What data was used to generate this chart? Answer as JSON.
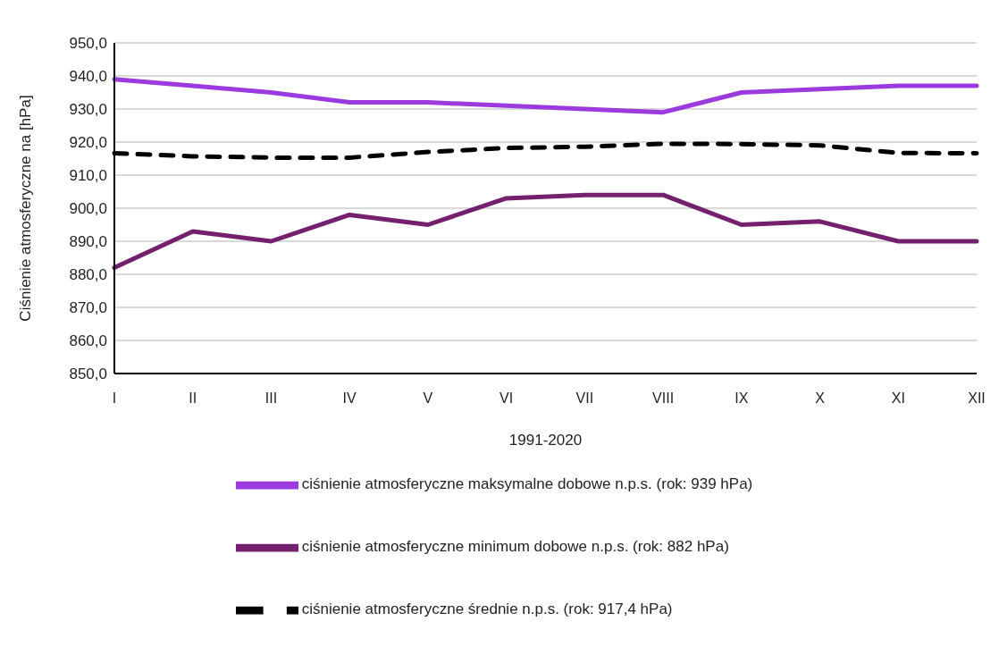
{
  "chart_data": {
    "type": "line",
    "xlabel": "1991-2020",
    "ylabel": "Ciśnienie atmosferyczne na [hPa]",
    "categories": [
      "I",
      "II",
      "III",
      "IV",
      "V",
      "VI",
      "VII",
      "VIII",
      "IX",
      "X",
      "XI",
      "XII"
    ],
    "series": [
      {
        "name": "ciśnienie atmosferyczne średnie n.p.s. (rok: 917,4 hPa)",
        "color": "#000000",
        "line_style": "dashed",
        "values": [
          916.6,
          915.7,
          915.3,
          915.3,
          917.0,
          918.2,
          918.6,
          919.5,
          919.4,
          919.0,
          916.7,
          916.6
        ]
      },
      {
        "name": "ciśnienie atmosferyczne maksymalne dobowe n.p.s. (rok: 939 hPa)",
        "color": "#9b3ade",
        "line_style": "solid",
        "values": [
          939,
          937,
          935,
          932,
          932,
          931,
          930,
          929,
          935,
          936,
          937,
          937
        ]
      },
      {
        "name": "ciśnienie atmosferyczne minimum dobowe n.p.s. (rok: 882 hPa)",
        "color": "#74206e",
        "line_style": "solid",
        "values": [
          882,
          893,
          890,
          898,
          895,
          903,
          904,
          904,
          895,
          896,
          890,
          890
        ]
      }
    ],
    "ylim": [
      850,
      950
    ],
    "yticks": [
      {
        "value": 850,
        "label": "850,0"
      },
      {
        "value": 860,
        "label": "860,0"
      },
      {
        "value": 870,
        "label": "870,0"
      },
      {
        "value": 880,
        "label": "880,0"
      },
      {
        "value": 890,
        "label": "890,0"
      },
      {
        "value": 900,
        "label": "900,0"
      },
      {
        "value": 910,
        "label": "910,0"
      },
      {
        "value": 920,
        "label": "920,0"
      },
      {
        "value": 930,
        "label": "930,0"
      },
      {
        "value": 940,
        "label": "940,0"
      },
      {
        "value": 950,
        "label": "950,0"
      }
    ],
    "grid": "y",
    "legend": "bottom",
    "marker": "none"
  }
}
